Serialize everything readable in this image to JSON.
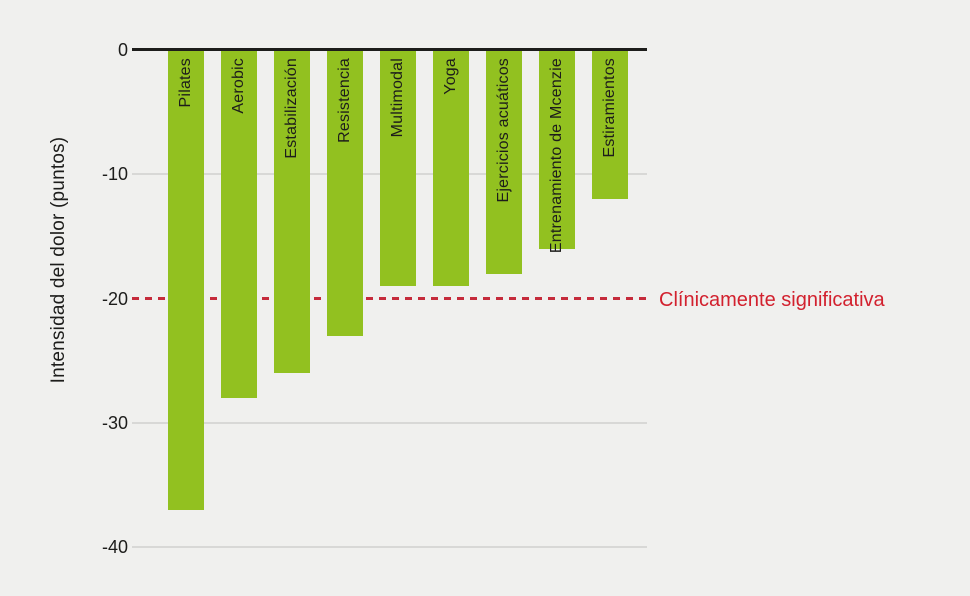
{
  "colors": {
    "background": "#f0f0ee",
    "bar": "#92c120",
    "axis": "#1d1d1b",
    "grid": "#d8d8d6",
    "reference_line": "#c52b3b",
    "reference_text": "#d2212e",
    "text": "#1d1d1b"
  },
  "chart_data": {
    "type": "bar",
    "categories": [
      "Pilates",
      "Aerobic",
      "Estabilización",
      "Resistencia",
      "Multimodal",
      "Yoga",
      "Ejercicios acuáticos",
      "Entrenamiento de Mcenzie",
      "Estiramientos"
    ],
    "values": [
      -37,
      -28,
      -26,
      -23,
      -19,
      -19,
      -18,
      -16,
      -12
    ],
    "ylabel": "Intensidad del dolor (puntos)",
    "ylim": [
      -40,
      0
    ],
    "yticks": [
      0,
      -10,
      -20,
      -30,
      -40
    ],
    "grid": "horizontal",
    "legend": "none",
    "bar_orientation": "vertical-negative",
    "reference_line": {
      "value": -20,
      "label": "Clínicamente significativa",
      "style": "dashed"
    }
  }
}
